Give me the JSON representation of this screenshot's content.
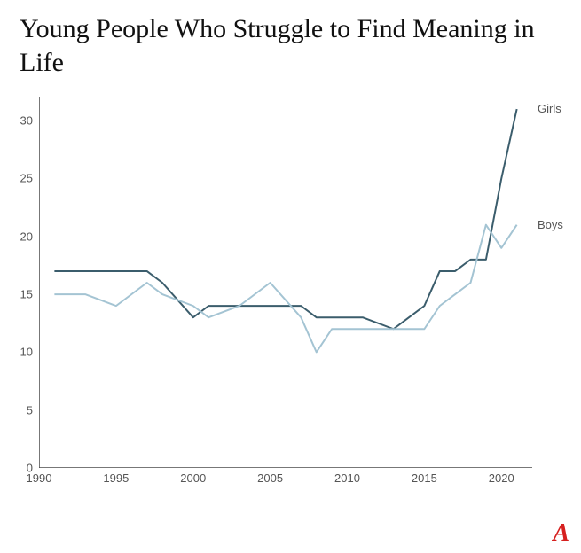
{
  "title": "Young People Who Struggle to Find Meaning in Life",
  "logo": "A",
  "chart": {
    "type": "line",
    "background_color": "#ffffff",
    "axis_color": "#4a4a4a",
    "tick_color": "#888888",
    "label_color": "#555555",
    "label_fontsize": 13,
    "title_fontsize": 30,
    "xlim": [
      1990,
      2022
    ],
    "ylim": [
      0,
      32
    ],
    "x_ticks": [
      1990,
      1995,
      2000,
      2005,
      2010,
      2015,
      2020
    ],
    "y_ticks": [
      0,
      5,
      10,
      15,
      20,
      25,
      30
    ],
    "line_width": 2,
    "series": [
      {
        "name": "Girls",
        "color": "#3b5d6c",
        "label_y": 31,
        "points": [
          [
            1991,
            17
          ],
          [
            1993,
            17
          ],
          [
            1995,
            17
          ],
          [
            1997,
            17
          ],
          [
            1998,
            16
          ],
          [
            2000,
            13
          ],
          [
            2001,
            14
          ],
          [
            2003,
            14
          ],
          [
            2005,
            14
          ],
          [
            2007,
            14
          ],
          [
            2008,
            13
          ],
          [
            2009,
            13
          ],
          [
            2011,
            13
          ],
          [
            2013,
            12
          ],
          [
            2014,
            13
          ],
          [
            2015,
            14
          ],
          [
            2016,
            17
          ],
          [
            2017,
            17
          ],
          [
            2018,
            18
          ],
          [
            2019,
            18
          ],
          [
            2020,
            25
          ],
          [
            2021,
            31
          ]
        ]
      },
      {
        "name": "Boys",
        "color": "#a4c4d3",
        "label_y": 21,
        "points": [
          [
            1991,
            15
          ],
          [
            1993,
            15
          ],
          [
            1995,
            14
          ],
          [
            1997,
            16
          ],
          [
            1998,
            15
          ],
          [
            2000,
            14
          ],
          [
            2001,
            13
          ],
          [
            2003,
            14
          ],
          [
            2005,
            16
          ],
          [
            2007,
            13
          ],
          [
            2008,
            10
          ],
          [
            2009,
            12
          ],
          [
            2011,
            12
          ],
          [
            2013,
            12
          ],
          [
            2014,
            12
          ],
          [
            2015,
            12
          ],
          [
            2016,
            14
          ],
          [
            2017,
            15
          ],
          [
            2018,
            16
          ],
          [
            2019,
            21
          ],
          [
            2020,
            19
          ],
          [
            2021,
            21
          ]
        ]
      }
    ]
  }
}
